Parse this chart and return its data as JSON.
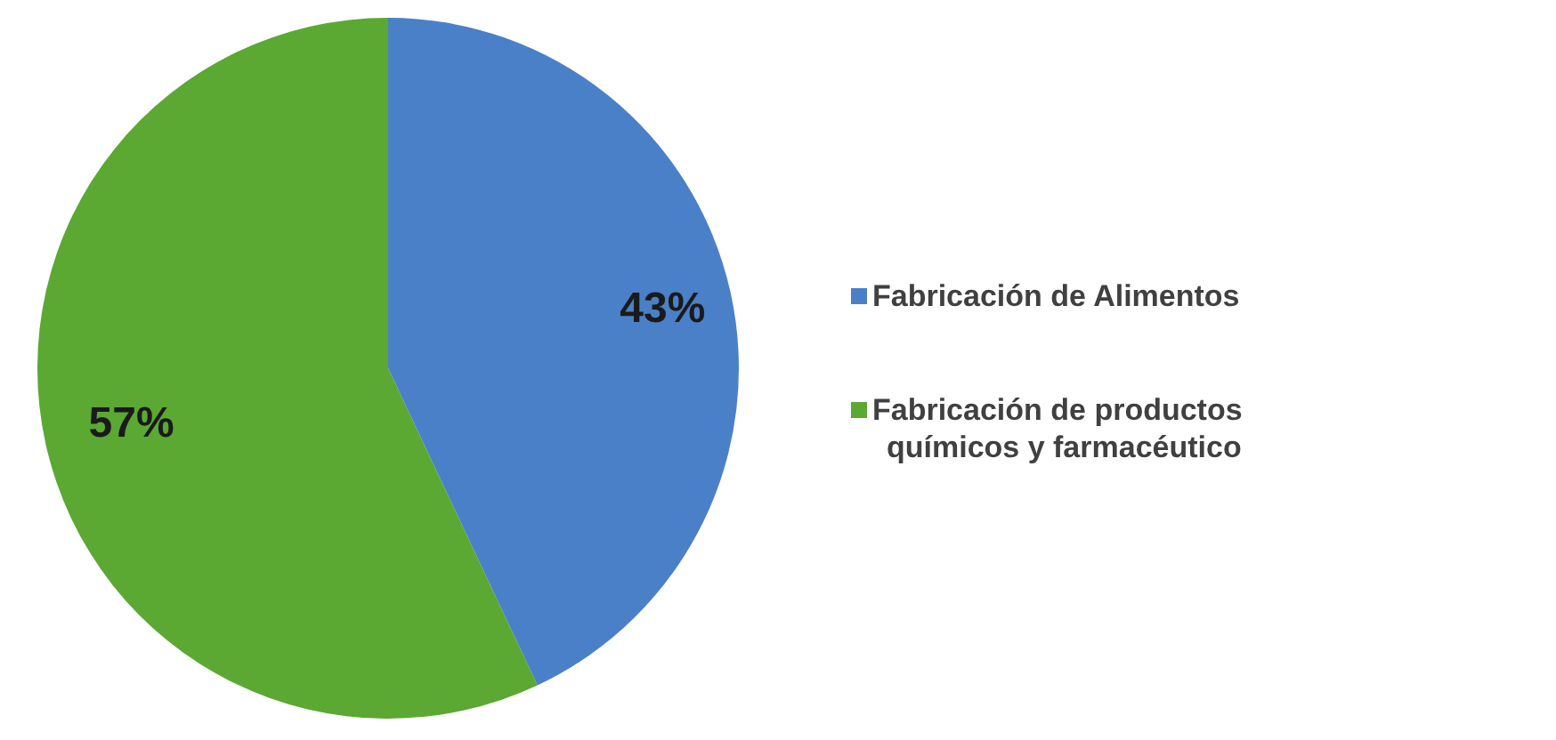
{
  "chart_data": {
    "type": "pie",
    "categories": [
      "Fabricación de Alimentos",
      "Fabricación de productos químicos y farmacéutico"
    ],
    "values": [
      43,
      57
    ],
    "colors": [
      "#4a80c8",
      "#5ba833"
    ],
    "value_labels": [
      "43%",
      "57%"
    ],
    "legend": "right"
  }
}
